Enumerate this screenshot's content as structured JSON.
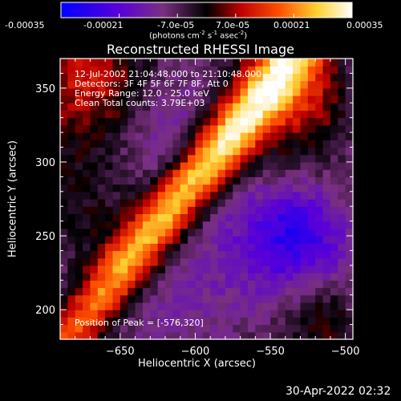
{
  "colorbar": {
    "tick_labels": [
      "-0.00035",
      "-0.00021",
      "-7.0e-05",
      "7.0e-05",
      "0.00021",
      "0.00035"
    ],
    "units_text": "(photons cm",
    "units_exp1": "-2",
    "units_mid": " s",
    "units_exp2": "-1",
    "units_end": " asec",
    "units_exp3": "-2",
    "units_close": ")",
    "colors": [
      "#0000ff",
      "#6a00c8",
      "#8a2a78",
      "#000000",
      "#c80000",
      "#ff7a00",
      "#ffff60",
      "#ffffff"
    ]
  },
  "chart_data": {
    "type": "heatmap",
    "title": "Reconstructed RHESSI Image",
    "xlabel": "Heliocentric X (arcsec)",
    "ylabel": "Heliocentric Y (arcsec)",
    "xlim": [
      -690,
      -495
    ],
    "ylim": [
      180,
      370
    ],
    "xticks": [
      -650,
      -600,
      -550,
      -500
    ],
    "yticks": [
      200,
      250,
      300,
      350
    ],
    "vmin": -0.00035,
    "vmax": 0.00035,
    "annotations": [
      "12-Jul-2002 21:04:48.000 to 21:10:48.000",
      "Detectors: 3F 4F 5F 6F 7F 8F, Att 0",
      "Energy Range: 12.0 - 25.0 keV",
      "Clean     Total counts: 3.79E+03"
    ],
    "peak_label": "Position of Peak = [-576,320]",
    "peak": [
      -576,
      320
    ]
  },
  "footer": {
    "date": "30-Apr-2022 02:32"
  }
}
